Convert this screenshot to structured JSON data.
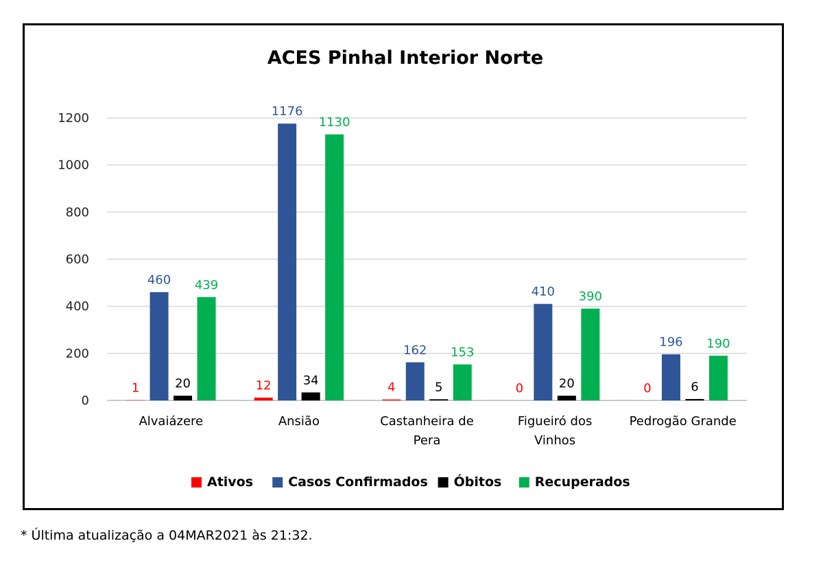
{
  "chart_data": {
    "type": "bar",
    "title": "ACES Pinhal Interior Norte",
    "categories": [
      "Alvaiázere",
      "Ansião",
      "Castanheira de Pera",
      "Figueiró dos Vinhos",
      "Pedrogão Grande"
    ],
    "category_lines": [
      [
        "Alvaiázere"
      ],
      [
        "Ansião"
      ],
      [
        "Castanheira de",
        "Pera"
      ],
      [
        "Figueiró dos",
        "Vinhos"
      ],
      [
        "Pedrogão Grande"
      ]
    ],
    "series": [
      {
        "name": "Ativos",
        "color": "#ff0000",
        "values": [
          1,
          12,
          4,
          0,
          0
        ]
      },
      {
        "name": "Casos Confirmados",
        "color": "#2f5597",
        "values": [
          460,
          1176,
          162,
          410,
          196
        ]
      },
      {
        "name": "Óbitos",
        "color": "#000000",
        "values": [
          20,
          34,
          5,
          20,
          6
        ]
      },
      {
        "name": "Recuperados",
        "color": "#00b050",
        "values": [
          439,
          1130,
          153,
          390,
          190
        ]
      }
    ],
    "ylim": [
      0,
      1200
    ],
    "yticks": [
      "0",
      "200",
      "400",
      "600",
      "800",
      "1000",
      "1200"
    ],
    "grid": true,
    "legend": "bottom",
    "xlabel": "",
    "ylabel": ""
  },
  "footnote": "* Última atualização a 04MAR2021 às 21:32."
}
